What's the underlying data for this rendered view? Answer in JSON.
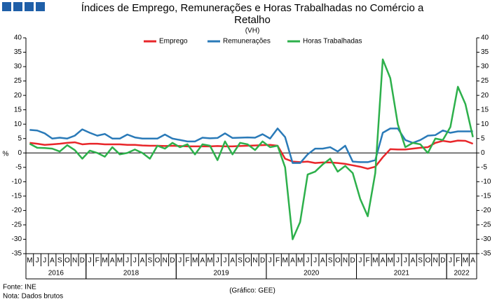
{
  "chart_data": {
    "type": "line",
    "title": [
      "Índices de Emprego, Remunerações e Horas Trabalhadas no Comércio a",
      "Retalho"
    ],
    "subtitle": "(VH)",
    "y_label": "%",
    "category_groups": [
      {
        "label": "2016",
        "categories": [
          "M",
          "J",
          "J",
          "A",
          "S",
          "O",
          "N",
          "D"
        ]
      },
      {
        "label": "2018",
        "categories": [
          "J",
          "F",
          "M",
          "A",
          "M",
          "J",
          "J",
          "A",
          "S",
          "O",
          "N",
          "D"
        ]
      },
      {
        "label": "2019",
        "categories": [
          "J",
          "F",
          "M",
          "A",
          "M",
          "J",
          "J",
          "A",
          "S",
          "O",
          "N",
          "D"
        ]
      },
      {
        "label": "2020",
        "categories": [
          "J",
          "F",
          "M",
          "A",
          "M",
          "J",
          "J",
          "A",
          "S",
          "O",
          "N",
          "D"
        ]
      },
      {
        "label": "2021",
        "categories": [
          "J",
          "F",
          "M",
          "A",
          "M",
          "J",
          "J",
          "A",
          "S",
          "O",
          "N",
          "D"
        ]
      },
      {
        "label": "2022",
        "categories": [
          "J",
          "F",
          "M",
          "A"
        ]
      }
    ],
    "series": [
      {
        "name": "Emprego",
        "color": "#e8262a",
        "values": [
          3.5,
          3.2,
          2.8,
          3,
          3.2,
          3.5,
          3.7,
          3,
          3.2,
          3.2,
          3,
          3,
          3,
          2.8,
          2.8,
          2.6,
          2.5,
          2.5,
          2.4,
          2.5,
          2.4,
          2.3,
          2.3,
          2.3,
          2.3,
          2.4,
          2.3,
          2.3,
          2.4,
          2.5,
          2.6,
          2.7,
          2.8,
          2.5,
          -2,
          -3,
          -3.2,
          -3,
          -3.5,
          -3.3,
          -3.3,
          -3.5,
          -3.8,
          -4.3,
          -4.8,
          -5.5,
          -4.8,
          -1.5,
          1.3,
          1.2,
          1.2,
          1.5,
          1.8,
          2,
          3.5,
          4.2,
          3.8,
          4.3,
          4.2,
          3.2
        ]
      },
      {
        "name": "Remunerações",
        "color": "#2a7ab8",
        "values": [
          8,
          7.8,
          6.8,
          5,
          5.3,
          5,
          6,
          8.2,
          7,
          6,
          6.6,
          5,
          5,
          6.4,
          5.4,
          5,
          5,
          5,
          6.4,
          5,
          4.5,
          4,
          4,
          5.3,
          5.1,
          5.2,
          6.8,
          5.2,
          5.3,
          5.4,
          5.3,
          6.5,
          5,
          8.5,
          5.5,
          -3.5,
          -3.5,
          -0.5,
          1.5,
          1.5,
          2,
          0.5,
          2.5,
          -3,
          -3.2,
          -3.2,
          -2.5,
          7,
          8.5,
          8.5,
          4.5,
          3.5,
          4.5,
          6,
          6.2,
          7.8,
          7,
          7.5,
          7.5,
          7.5
        ]
      },
      {
        "name": "Horas Trabalhadas",
        "color": "#2db04b",
        "values": [
          3.2,
          1.8,
          1.7,
          1.5,
          0.5,
          2.7,
          1,
          -2,
          0.8,
          0,
          -1.3,
          2,
          -0.5,
          0,
          1.2,
          0,
          -2,
          2.5,
          1.5,
          3.5,
          2,
          3,
          -0.5,
          3,
          2.5,
          -2.5,
          4,
          -0.5,
          3.5,
          3,
          1,
          4,
          2,
          2.5,
          -5,
          -30,
          -24,
          -7.5,
          -6.5,
          -4,
          -2,
          -6.5,
          -4.5,
          -7,
          -16,
          -22,
          -7,
          32.5,
          26,
          10,
          2,
          3.5,
          3,
          0,
          5,
          4.5,
          9,
          23,
          17,
          5.5
        ]
      }
    ],
    "ylim": [
      -35,
      40
    ],
    "yticks": [
      -35,
      -30,
      -25,
      -20,
      -15,
      -10,
      -5,
      0,
      5,
      10,
      15,
      20,
      25,
      30,
      35,
      40
    ],
    "source": "Fonte: INE",
    "note": "Nota: Dados brutos",
    "credit": "(Gráfico: GEE)"
  }
}
